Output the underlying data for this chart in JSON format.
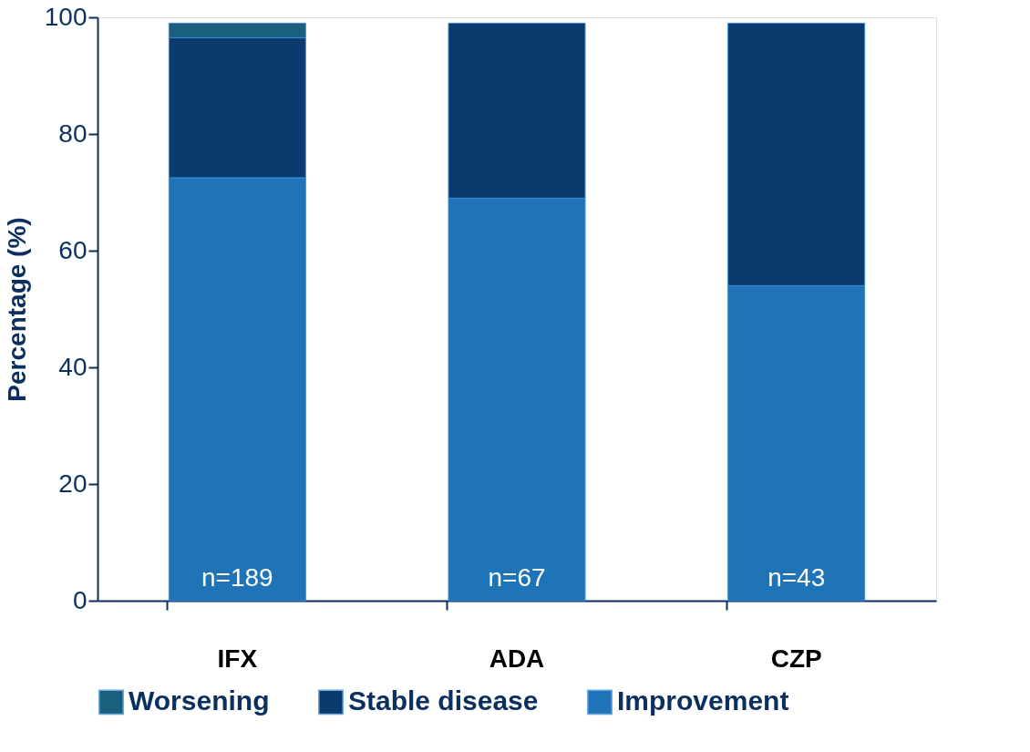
{
  "chart_data": {
    "type": "bar",
    "stacked": true,
    "ylabel": "Percentage (%)",
    "categories": [
      "IFX",
      "ADA",
      "CZP"
    ],
    "series": [
      {
        "name": "Improvement",
        "color": "#1f73b7",
        "values": [
          72.5,
          69,
          54
        ]
      },
      {
        "name": "Stable disease",
        "color": "#0b3a6e",
        "values": [
          24,
          30,
          45
        ]
      },
      {
        "name": "Worsening",
        "color": "#1b5f7e",
        "values": [
          2.5,
          null,
          null
        ]
      }
    ],
    "ylim": [
      0,
      100
    ],
    "yticks": [
      0,
      20,
      40,
      60,
      80,
      100
    ],
    "grid": false,
    "legend": "bottom",
    "annotations": [
      "n=189",
      "n=67",
      "n=43"
    ]
  }
}
